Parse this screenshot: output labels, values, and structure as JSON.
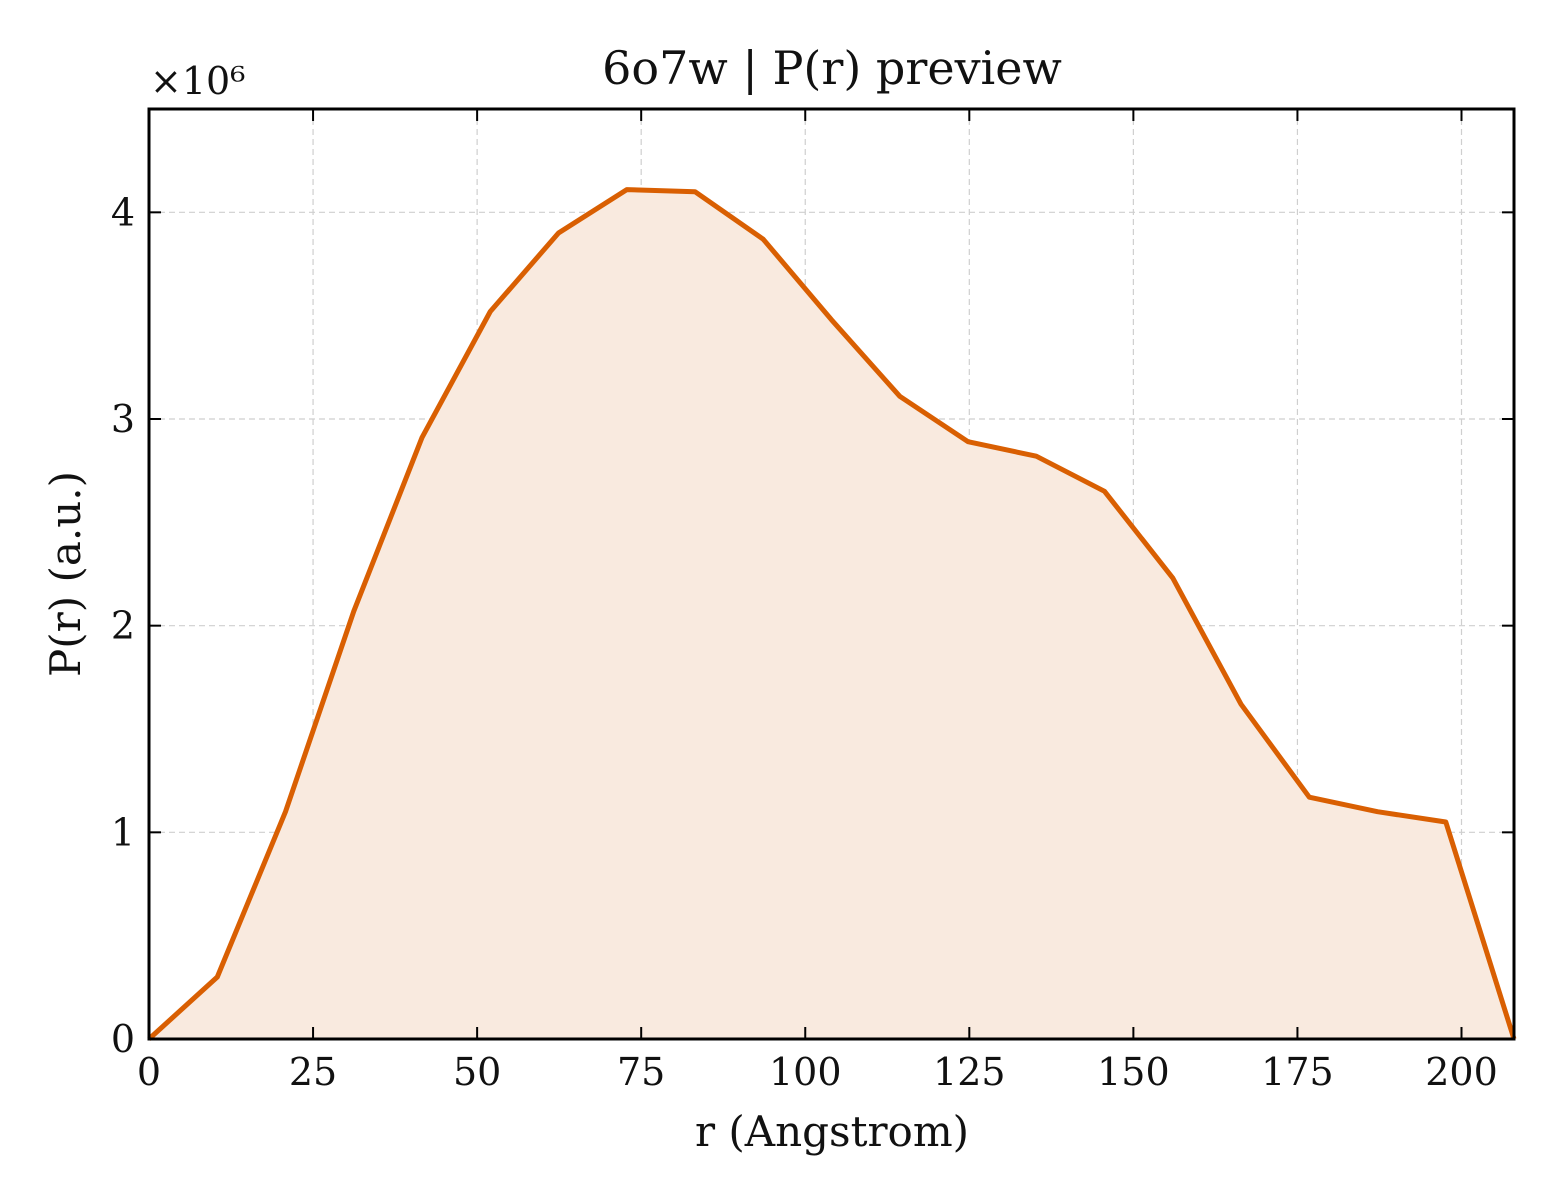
{
  "chart_data": {
    "type": "area",
    "title": "6o7w | P(r) preview",
    "xlabel": "r (Angstrom)",
    "ylabel": "P(r) (a.u.)",
    "y_scale_label": "×10⁶",
    "xlim": [
      0,
      208
    ],
    "ylim": [
      0,
      4.5
    ],
    "x_ticks": [
      0,
      25,
      50,
      75,
      100,
      125,
      150,
      175,
      200
    ],
    "x_tick_labels": [
      "0",
      "25",
      "50",
      "75",
      "100",
      "125",
      "150",
      "175",
      "200"
    ],
    "y_ticks": [
      0,
      1,
      2,
      3,
      4
    ],
    "y_tick_labels": [
      "0",
      "1",
      "2",
      "3",
      "4"
    ],
    "grid": true,
    "line_color": "#d95f02",
    "fill_color": "#f9eadf",
    "series": [
      {
        "x": [
          0,
          10.4,
          20.8,
          31.2,
          41.6,
          52,
          62.4,
          72.8,
          83.2,
          93.6,
          104,
          114.4,
          124.8,
          135.2,
          145.6,
          156,
          166.4,
          176.8,
          187.2,
          197.6,
          208
        ],
        "y": [
          0,
          0.3,
          1.1,
          2.07,
          2.91,
          3.52,
          3.9,
          4.11,
          4.1,
          3.87,
          3.48,
          3.11,
          2.89,
          2.82,
          2.65,
          2.23,
          1.62,
          1.17,
          1.1,
          1.05,
          0
        ]
      }
    ]
  }
}
